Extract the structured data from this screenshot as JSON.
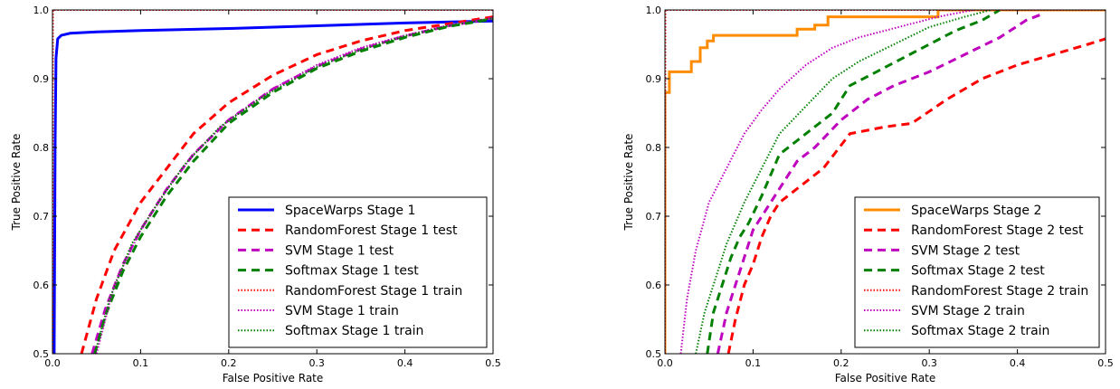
{
  "chart_data": [
    {
      "type": "line",
      "xlabel": "False Positive Rate",
      "ylabel": "True Positive Rate",
      "xlim": [
        0,
        0.5
      ],
      "ylim": [
        0.5,
        1.0
      ],
      "xticks": [
        "0.0",
        "0.1",
        "0.2",
        "0.3",
        "0.4",
        "0.5"
      ],
      "yticks": [
        "0.5",
        "0.6",
        "0.7",
        "0.8",
        "0.9",
        "1.0"
      ],
      "grid": false,
      "legend_position": "lower-right",
      "series": [
        {
          "name": "SpaceWarps Stage 1",
          "color": "#0000ff",
          "style": "solid",
          "x": [
            0.002,
            0.003,
            0.004,
            0.006,
            0.01,
            0.02,
            0.05,
            0.1,
            0.2,
            0.3,
            0.4,
            0.5
          ],
          "y": [
            0.5,
            0.8,
            0.93,
            0.958,
            0.963,
            0.966,
            0.968,
            0.97,
            0.973,
            0.977,
            0.981,
            0.984
          ]
        },
        {
          "name": "RandomForest Stage 1 test",
          "color": "#ff0000",
          "style": "dashed",
          "x": [
            0.033,
            0.05,
            0.07,
            0.1,
            0.13,
            0.16,
            0.2,
            0.25,
            0.3,
            0.35,
            0.4,
            0.45,
            0.5
          ],
          "y": [
            0.5,
            0.58,
            0.65,
            0.72,
            0.77,
            0.82,
            0.865,
            0.905,
            0.935,
            0.955,
            0.97,
            0.98,
            0.99
          ]
        },
        {
          "name": "SVM Stage 1 test",
          "color": "#bf00bf",
          "style": "dashed",
          "x": [
            0.045,
            0.06,
            0.08,
            0.1,
            0.13,
            0.16,
            0.2,
            0.25,
            0.3,
            0.35,
            0.4,
            0.45,
            0.5
          ],
          "y": [
            0.5,
            0.565,
            0.63,
            0.68,
            0.74,
            0.79,
            0.84,
            0.885,
            0.918,
            0.943,
            0.962,
            0.977,
            0.988
          ]
        },
        {
          "name": "Softmax Stage 1 test",
          "color": "#008000",
          "style": "dashed",
          "x": [
            0.048,
            0.06,
            0.08,
            0.1,
            0.13,
            0.16,
            0.2,
            0.25,
            0.3,
            0.35,
            0.4,
            0.45,
            0.5
          ],
          "y": [
            0.5,
            0.555,
            0.62,
            0.67,
            0.73,
            0.78,
            0.835,
            0.88,
            0.915,
            0.94,
            0.96,
            0.976,
            0.987
          ]
        },
        {
          "name": "RandomForest Stage 1 train",
          "color": "#ff0000",
          "style": "dotted",
          "x": [
            0.0,
            0.0005,
            0.5
          ],
          "y": [
            0.5,
            1.0,
            1.0
          ]
        },
        {
          "name": "SVM Stage 1 train",
          "color": "#bf00bf",
          "style": "dotted",
          "x": [
            0.05,
            0.07,
            0.1,
            0.13,
            0.16,
            0.2,
            0.25,
            0.3,
            0.35,
            0.4,
            0.45,
            0.5
          ],
          "y": [
            0.5,
            0.6,
            0.68,
            0.74,
            0.79,
            0.84,
            0.885,
            0.92,
            0.945,
            0.963,
            0.978,
            0.988
          ]
        },
        {
          "name": "Softmax Stage 1 train",
          "color": "#008000",
          "style": "dotted",
          "x": [
            0.048,
            0.065,
            0.09,
            0.12,
            0.15,
            0.19,
            0.24,
            0.3,
            0.35,
            0.4,
            0.45,
            0.5
          ],
          "y": [
            0.5,
            0.58,
            0.66,
            0.72,
            0.775,
            0.83,
            0.875,
            0.917,
            0.942,
            0.962,
            0.977,
            0.988
          ]
        }
      ]
    },
    {
      "type": "line",
      "xlabel": "False Positive Rate",
      "ylabel": "True Positive Rate",
      "xlim": [
        0,
        0.5
      ],
      "ylim": [
        0.5,
        1.0
      ],
      "xticks": [
        "0.0",
        "0.1",
        "0.2",
        "0.3",
        "0.4",
        "0.5"
      ],
      "yticks": [
        "0.5",
        "0.6",
        "0.7",
        "0.8",
        "0.9",
        "1.0"
      ],
      "grid": false,
      "legend_position": "lower-right",
      "series": [
        {
          "name": "SpaceWarps Stage 2",
          "color": "#ff8c00",
          "style": "solid",
          "x": [
            0.0,
            0.0,
            0.005,
            0.005,
            0.03,
            0.03,
            0.04,
            0.04,
            0.048,
            0.048,
            0.055,
            0.055,
            0.15,
            0.15,
            0.17,
            0.17,
            0.185,
            0.185,
            0.31,
            0.31,
            0.5
          ],
          "y": [
            0.5,
            0.88,
            0.88,
            0.91,
            0.91,
            0.925,
            0.925,
            0.945,
            0.945,
            0.955,
            0.955,
            0.963,
            0.963,
            0.972,
            0.972,
            0.978,
            0.978,
            0.99,
            0.99,
            1.0,
            1.0
          ]
        },
        {
          "name": "RandomForest Stage 2 test",
          "color": "#ff0000",
          "style": "dashed",
          "x": [
            0.072,
            0.08,
            0.09,
            0.1,
            0.11,
            0.12,
            0.13,
            0.15,
            0.18,
            0.21,
            0.25,
            0.28,
            0.32,
            0.36,
            0.4,
            0.44,
            0.48,
            0.5
          ],
          "y": [
            0.5,
            0.55,
            0.6,
            0.63,
            0.67,
            0.7,
            0.72,
            0.74,
            0.77,
            0.82,
            0.83,
            0.835,
            0.87,
            0.9,
            0.92,
            0.935,
            0.95,
            0.958
          ]
        },
        {
          "name": "SVM Stage 2 test",
          "color": "#bf00bf",
          "style": "dashed",
          "x": [
            0.06,
            0.07,
            0.08,
            0.09,
            0.1,
            0.11,
            0.13,
            0.15,
            0.17,
            0.2,
            0.23,
            0.26,
            0.3,
            0.34,
            0.38,
            0.41,
            0.43
          ],
          "y": [
            0.5,
            0.56,
            0.6,
            0.64,
            0.68,
            0.7,
            0.74,
            0.78,
            0.8,
            0.84,
            0.87,
            0.89,
            0.91,
            0.935,
            0.96,
            0.985,
            0.995
          ]
        },
        {
          "name": "Softmax Stage 2 test",
          "color": "#008000",
          "style": "dashed",
          "x": [
            0.048,
            0.055,
            0.065,
            0.075,
            0.085,
            0.095,
            0.11,
            0.13,
            0.15,
            0.17,
            0.19,
            0.21,
            0.24,
            0.27,
            0.3,
            0.33,
            0.36,
            0.38
          ],
          "y": [
            0.5,
            0.56,
            0.6,
            0.64,
            0.67,
            0.69,
            0.73,
            0.79,
            0.81,
            0.83,
            0.85,
            0.89,
            0.91,
            0.93,
            0.95,
            0.97,
            0.985,
            1.0
          ]
        },
        {
          "name": "RandomForest Stage 2 train",
          "color": "#ff0000",
          "style": "dotted",
          "x": [
            0.0,
            0.0005,
            0.5
          ],
          "y": [
            0.5,
            1.0,
            1.0
          ]
        },
        {
          "name": "SVM Stage 2 train",
          "color": "#bf00bf",
          "style": "dotted",
          "x": [
            0.018,
            0.025,
            0.035,
            0.05,
            0.07,
            0.09,
            0.11,
            0.13,
            0.16,
            0.19,
            0.22,
            0.25,
            0.28,
            0.31,
            0.33,
            0.35
          ],
          "y": [
            0.5,
            0.58,
            0.65,
            0.72,
            0.77,
            0.82,
            0.855,
            0.885,
            0.92,
            0.945,
            0.96,
            0.97,
            0.98,
            0.99,
            0.995,
            1.0
          ]
        },
        {
          "name": "Softmax Stage 2 train",
          "color": "#008000",
          "style": "dotted",
          "x": [
            0.035,
            0.045,
            0.055,
            0.07,
            0.09,
            0.11,
            0.13,
            0.16,
            0.19,
            0.22,
            0.26,
            0.3,
            0.34,
            0.37
          ],
          "y": [
            0.5,
            0.56,
            0.6,
            0.66,
            0.72,
            0.77,
            0.82,
            0.86,
            0.9,
            0.925,
            0.95,
            0.975,
            0.99,
            1.0
          ]
        }
      ]
    }
  ]
}
